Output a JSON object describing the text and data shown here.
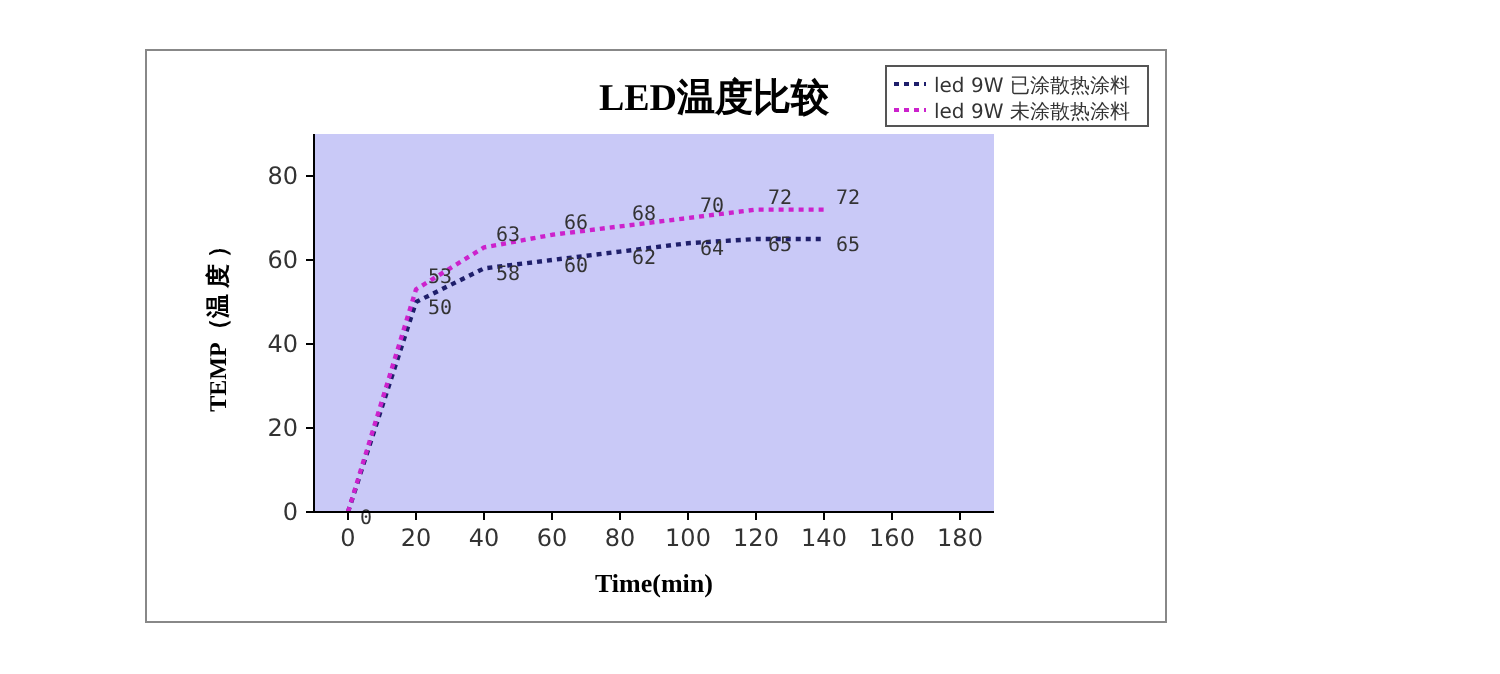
{
  "chart_data": {
    "type": "line",
    "title": "LED温度比较",
    "xlabel": "Time(min)",
    "ylabel": "TEMP（温 度 ）",
    "x": [
      0,
      20,
      40,
      60,
      80,
      100,
      120,
      140
    ],
    "series": [
      {
        "name": "led 9W  已涂散热涂料",
        "color": "#1f1f6b",
        "values": [
          0,
          50,
          58,
          60,
          62,
          64,
          65,
          65
        ],
        "value_labels": [
          "0",
          "50",
          "58",
          "60",
          "62",
          "64",
          "65",
          "65"
        ]
      },
      {
        "name": "led 9W  未涂散热涂料",
        "color": "#cc22cc",
        "values": [
          0,
          53,
          63,
          66,
          68,
          70,
          72,
          72
        ],
        "value_labels": [
          null,
          "53",
          "63",
          "66",
          "68",
          "70",
          "72",
          "72"
        ]
      }
    ],
    "xlim": [
      -10,
      190
    ],
    "xticks": [
      0,
      20,
      40,
      60,
      80,
      100,
      120,
      140,
      160,
      180
    ],
    "ylim": [
      0,
      90
    ],
    "yticks": [
      0,
      20,
      40,
      60,
      80
    ],
    "grid": false,
    "legend": "top right",
    "marker": "none",
    "line_style": "dotted"
  }
}
